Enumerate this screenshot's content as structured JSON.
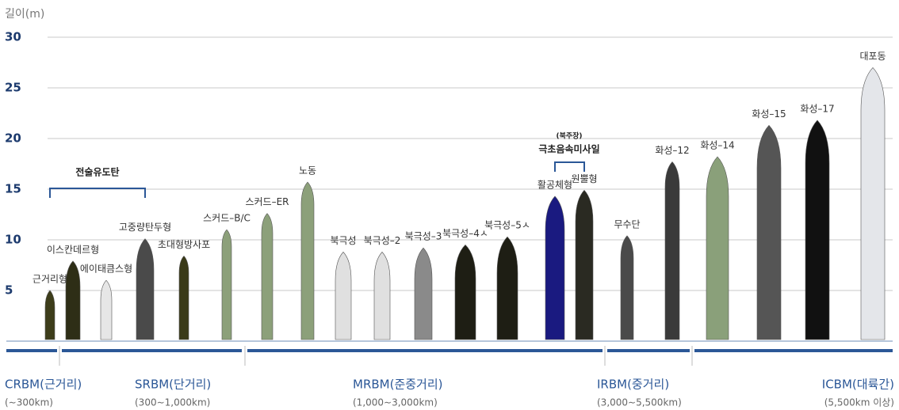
{
  "chart_data": {
    "type": "bar",
    "y_label": "길이(m)",
    "categories": [
      "근거리형",
      "이스칸데르형",
      "에이태큼스형",
      "고중량탄두형",
      "초대형방사포",
      "스커드–B/C",
      "스커드–ER",
      "노동",
      "북극성",
      "북극성–2",
      "북극성–3",
      "북극성–4ㅅ",
      "북극성–5ㅅ",
      "활공체형",
      "원뿔형",
      "무수단",
      "화성–12",
      "화성–14",
      "화성–15",
      "화성–17",
      "대포동"
    ],
    "values": [
      5.0,
      7.9,
      6.0,
      10.1,
      8.4,
      11.0,
      12.6,
      15.7,
      8.8,
      8.8,
      9.2,
      9.5,
      10.3,
      14.3,
      14.9,
      10.4,
      17.7,
      18.2,
      21.3,
      21.8,
      27.0
    ],
    "colors": [
      "#3d3d1a",
      "#2e2e16",
      "#e6e6e6",
      "#4a4a4a",
      "#3a3a18",
      "#8ca07a",
      "#8ca07a",
      "#8ca07a",
      "#e0e0e0",
      "#e0e0e0",
      "#8a8a8a",
      "#1e1e14",
      "#1e1e14",
      "#1a1a80",
      "#2a2a22",
      "#4a4a4a",
      "#3a3a3a",
      "#8aa07a",
      "#555555",
      "#111111",
      "#e4e6ea"
    ],
    "ylim": [
      0,
      30
    ],
    "yticks": [
      5,
      10,
      15,
      20,
      25,
      30
    ],
    "grid": true,
    "groups": [
      {
        "label": "전술유도탄"
      },
      {
        "note": "(북주장)",
        "label": "극초음속미사일"
      }
    ],
    "classes": [
      {
        "name": "CRBM(근거리)",
        "range": "(∼300km)"
      },
      {
        "name": "SRBM(단거리)",
        "range": "(300∼1,000km)"
      },
      {
        "name": "MRBM(준중거리)",
        "range": "(1,000∼3,000km)"
      },
      {
        "name": "IRBM(중거리)",
        "range": "(3,000∼5,500km)"
      },
      {
        "name": "ICBM(대륙간)",
        "range": "(5,500km 이상)"
      }
    ]
  }
}
